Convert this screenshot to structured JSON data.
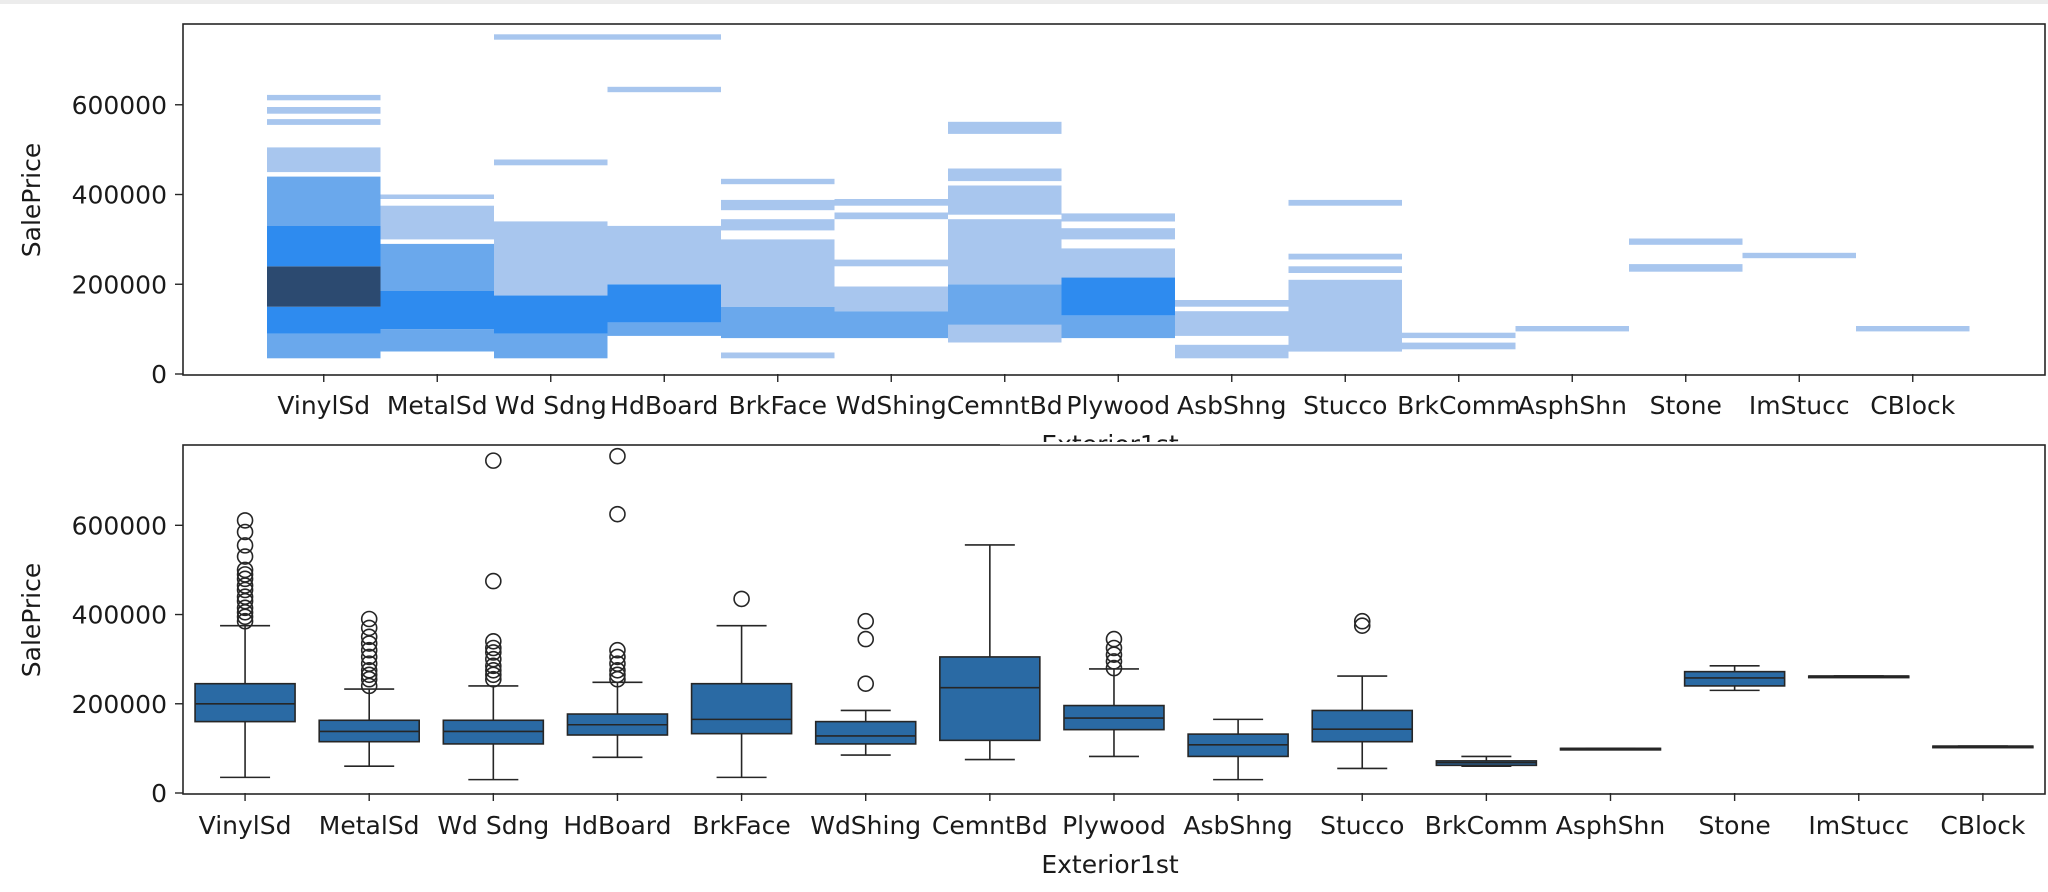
{
  "colors": {
    "hist_light": "#a8c6ee",
    "hist_mid": "#6aa8ec",
    "hist_strong": "#2e8bef",
    "hist_dark": "#2c4a70",
    "box_fill": "#2a6aa4",
    "ink": "#262626"
  },
  "chart_data": [
    {
      "type": "heatmap",
      "xlabel": "Exterior1st",
      "ylabel": "SalePrice",
      "ylim": [
        0,
        780000
      ],
      "yticks": [
        0,
        200000,
        400000,
        600000
      ],
      "categories": [
        "VinylSd",
        "MetalSd",
        "Wd Sdng",
        "HdBoard",
        "BrkFace",
        "WdShing",
        "CemntBd",
        "Plywood",
        "AsbShng",
        "Stucco",
        "BrkComm",
        "AsphShn",
        "Stone",
        "ImStucc",
        "CBlock"
      ],
      "bins": [
        {
          "cat": "VinylSd",
          "y0": 35000,
          "y1": 90000,
          "level": 2
        },
        {
          "cat": "VinylSd",
          "y0": 90000,
          "y1": 150000,
          "level": 3
        },
        {
          "cat": "VinylSd",
          "y0": 150000,
          "y1": 240000,
          "level": 4
        },
        {
          "cat": "VinylSd",
          "y0": 240000,
          "y1": 330000,
          "level": 3
        },
        {
          "cat": "VinylSd",
          "y0": 330000,
          "y1": 440000,
          "level": 2
        },
        {
          "cat": "VinylSd",
          "y0": 450000,
          "y1": 505000,
          "level": 1
        },
        {
          "cat": "VinylSd",
          "y0": 555000,
          "y1": 568000,
          "level": 1
        },
        {
          "cat": "VinylSd",
          "y0": 580000,
          "y1": 595000,
          "level": 1
        },
        {
          "cat": "VinylSd",
          "y0": 610000,
          "y1": 622000,
          "level": 1
        },
        {
          "cat": "MetalSd",
          "y0": 50000,
          "y1": 100000,
          "level": 2
        },
        {
          "cat": "MetalSd",
          "y0": 100000,
          "y1": 185000,
          "level": 3
        },
        {
          "cat": "MetalSd",
          "y0": 185000,
          "y1": 290000,
          "level": 2
        },
        {
          "cat": "MetalSd",
          "y0": 300000,
          "y1": 375000,
          "level": 1
        },
        {
          "cat": "MetalSd",
          "y0": 390000,
          "y1": 400000,
          "level": 1
        },
        {
          "cat": "Wd Sdng",
          "y0": 35000,
          "y1": 90000,
          "level": 2
        },
        {
          "cat": "Wd Sdng",
          "y0": 90000,
          "y1": 175000,
          "level": 3
        },
        {
          "cat": "Wd Sdng",
          "y0": 175000,
          "y1": 340000,
          "level": 1
        },
        {
          "cat": "Wd Sdng",
          "y0": 465000,
          "y1": 478000,
          "level": 1
        },
        {
          "cat": "Wd Sdng",
          "y0": 745000,
          "y1": 757000,
          "level": 1
        },
        {
          "cat": "HdBoard",
          "y0": 85000,
          "y1": 115000,
          "level": 2
        },
        {
          "cat": "HdBoard",
          "y0": 115000,
          "y1": 200000,
          "level": 3
        },
        {
          "cat": "HdBoard",
          "y0": 200000,
          "y1": 330000,
          "level": 1
        },
        {
          "cat": "HdBoard",
          "y0": 628000,
          "y1": 640000,
          "level": 1
        },
        {
          "cat": "HdBoard",
          "y0": 745000,
          "y1": 757000,
          "level": 1
        },
        {
          "cat": "BrkFace",
          "y0": 35000,
          "y1": 48000,
          "level": 1
        },
        {
          "cat": "BrkFace",
          "y0": 80000,
          "y1": 150000,
          "level": 2
        },
        {
          "cat": "BrkFace",
          "y0": 150000,
          "y1": 300000,
          "level": 1
        },
        {
          "cat": "BrkFace",
          "y0": 320000,
          "y1": 345000,
          "level": 1
        },
        {
          "cat": "BrkFace",
          "y0": 365000,
          "y1": 388000,
          "level": 1
        },
        {
          "cat": "BrkFace",
          "y0": 423000,
          "y1": 435000,
          "level": 1
        },
        {
          "cat": "WdShing",
          "y0": 80000,
          "y1": 140000,
          "level": 2
        },
        {
          "cat": "WdShing",
          "y0": 140000,
          "y1": 195000,
          "level": 1
        },
        {
          "cat": "WdShing",
          "y0": 240000,
          "y1": 255000,
          "level": 1
        },
        {
          "cat": "WdShing",
          "y0": 345000,
          "y1": 360000,
          "level": 1
        },
        {
          "cat": "WdShing",
          "y0": 375000,
          "y1": 390000,
          "level": 1
        },
        {
          "cat": "CemntBd",
          "y0": 70000,
          "y1": 110000,
          "level": 1
        },
        {
          "cat": "CemntBd",
          "y0": 110000,
          "y1": 200000,
          "level": 2
        },
        {
          "cat": "CemntBd",
          "y0": 200000,
          "y1": 345000,
          "level": 1
        },
        {
          "cat": "CemntBd",
          "y0": 355000,
          "y1": 420000,
          "level": 1
        },
        {
          "cat": "CemntBd",
          "y0": 430000,
          "y1": 458000,
          "level": 1
        },
        {
          "cat": "CemntBd",
          "y0": 535000,
          "y1": 562000,
          "level": 1
        },
        {
          "cat": "Plywood",
          "y0": 80000,
          "y1": 130000,
          "level": 2
        },
        {
          "cat": "Plywood",
          "y0": 130000,
          "y1": 215000,
          "level": 3
        },
        {
          "cat": "Plywood",
          "y0": 215000,
          "y1": 280000,
          "level": 1
        },
        {
          "cat": "Plywood",
          "y0": 300000,
          "y1": 325000,
          "level": 1
        },
        {
          "cat": "Plywood",
          "y0": 340000,
          "y1": 358000,
          "level": 1
        },
        {
          "cat": "AsbShng",
          "y0": 35000,
          "y1": 65000,
          "level": 1
        },
        {
          "cat": "AsbShng",
          "y0": 85000,
          "y1": 140000,
          "level": 1
        },
        {
          "cat": "AsbShng",
          "y0": 150000,
          "y1": 165000,
          "level": 1
        },
        {
          "cat": "Stucco",
          "y0": 50000,
          "y1": 210000,
          "level": 1
        },
        {
          "cat": "Stucco",
          "y0": 225000,
          "y1": 240000,
          "level": 1
        },
        {
          "cat": "Stucco",
          "y0": 255000,
          "y1": 268000,
          "level": 1
        },
        {
          "cat": "Stucco",
          "y0": 375000,
          "y1": 388000,
          "level": 1
        },
        {
          "cat": "BrkComm",
          "y0": 55000,
          "y1": 70000,
          "level": 1
        },
        {
          "cat": "BrkComm",
          "y0": 80000,
          "y1": 92000,
          "level": 1
        },
        {
          "cat": "AsphShn",
          "y0": 95000,
          "y1": 107000,
          "level": 1
        },
        {
          "cat": "Stone",
          "y0": 228000,
          "y1": 245000,
          "level": 1
        },
        {
          "cat": "Stone",
          "y0": 288000,
          "y1": 302000,
          "level": 1
        },
        {
          "cat": "ImStucc",
          "y0": 258000,
          "y1": 270000,
          "level": 1
        },
        {
          "cat": "CBlock",
          "y0": 95000,
          "y1": 107000,
          "level": 1
        }
      ]
    },
    {
      "type": "box",
      "xlabel": "Exterior1st",
      "ylabel": "SalePrice",
      "ylim": [
        0,
        780000
      ],
      "yticks": [
        0,
        200000,
        400000,
        600000
      ],
      "categories": [
        "VinylSd",
        "MetalSd",
        "Wd Sdng",
        "HdBoard",
        "BrkFace",
        "WdShing",
        "CemntBd",
        "Plywood",
        "AsbShng",
        "Stucco",
        "BrkComm",
        "AsphShn",
        "Stone",
        "ImStucc",
        "CBlock"
      ],
      "boxes": [
        {
          "cat": "VinylSd",
          "whislo": 35000,
          "q1": 160000,
          "med": 200000,
          "q3": 245000,
          "whishi": 375000,
          "fliers": [
            385000,
            395000,
            405000,
            415000,
            430000,
            440000,
            455000,
            465000,
            480000,
            490000,
            500000,
            530000,
            555000,
            585000,
            611000
          ]
        },
        {
          "cat": "MetalSd",
          "whislo": 60000,
          "q1": 115000,
          "med": 138000,
          "q3": 163000,
          "whishi": 233000,
          "fliers": [
            240000,
            255000,
            265000,
            275000,
            290000,
            305000,
            320000,
            335000,
            350000,
            370000,
            390000
          ]
        },
        {
          "cat": "Wd Sdng",
          "whislo": 30000,
          "q1": 110000,
          "med": 138000,
          "q3": 163000,
          "whishi": 240000,
          "fliers": [
            255000,
            265000,
            275000,
            285000,
            300000,
            315000,
            325000,
            340000,
            475000,
            745000
          ]
        },
        {
          "cat": "HdBoard",
          "whislo": 80000,
          "q1": 130000,
          "med": 153000,
          "q3": 177000,
          "whishi": 248000,
          "fliers": [
            255000,
            265000,
            275000,
            290000,
            305000,
            320000,
            625000,
            755000
          ]
        },
        {
          "cat": "BrkFace",
          "whislo": 35000,
          "q1": 133000,
          "med": 165000,
          "q3": 245000,
          "whishi": 375000,
          "fliers": [
            435000
          ]
        },
        {
          "cat": "WdShing",
          "whislo": 85000,
          "q1": 110000,
          "med": 128000,
          "q3": 160000,
          "whishi": 185000,
          "fliers": [
            245000,
            345000,
            385000
          ]
        },
        {
          "cat": "CemntBd",
          "whislo": 75000,
          "q1": 118000,
          "med": 236000,
          "q3": 305000,
          "whishi": 556000,
          "fliers": []
        },
        {
          "cat": "Plywood",
          "whislo": 82000,
          "q1": 142000,
          "med": 168000,
          "q3": 196000,
          "whishi": 278000,
          "fliers": [
            280000,
            295000,
            310000,
            325000,
            345000
          ]
        },
        {
          "cat": "AsbShng",
          "whislo": 30000,
          "q1": 82000,
          "med": 108000,
          "q3": 132000,
          "whishi": 165000,
          "fliers": []
        },
        {
          "cat": "Stucco",
          "whislo": 55000,
          "q1": 115000,
          "med": 143000,
          "q3": 185000,
          "whishi": 262000,
          "fliers": [
            375000,
            385000
          ]
        },
        {
          "cat": "BrkComm",
          "whislo": 60000,
          "q1": 62000,
          "med": 68000,
          "q3": 72000,
          "whishi": 82000,
          "fliers": []
        },
        {
          "cat": "AsphShn",
          "whislo": 100000,
          "q1": 100000,
          "med": 100000,
          "q3": 100000,
          "whishi": 100000,
          "fliers": []
        },
        {
          "cat": "Stone",
          "whislo": 230000,
          "q1": 240000,
          "med": 258000,
          "q3": 272000,
          "whishi": 285000,
          "fliers": []
        },
        {
          "cat": "ImStucc",
          "whislo": 262000,
          "q1": 262000,
          "med": 262000,
          "q3": 262000,
          "whishi": 262000,
          "fliers": []
        },
        {
          "cat": "CBlock",
          "whislo": 105000,
          "q1": 105000,
          "med": 105000,
          "q3": 105000,
          "whishi": 105000,
          "fliers": []
        }
      ]
    }
  ]
}
